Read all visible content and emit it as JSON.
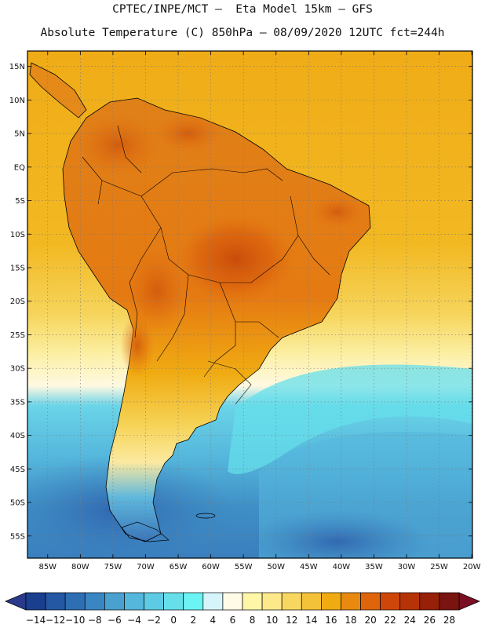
{
  "header": {
    "line1": "CPTEC/INPE/MCT –  Eta Model 15km – GFS",
    "line2": "Absolute Temperature (C) 850hPa – 08/09/2020 12UTC fct=244h"
  },
  "map": {
    "lat_labels": [
      "15N",
      "10N",
      "5N",
      "EQ",
      "5S",
      "10S",
      "15S",
      "20S",
      "25S",
      "30S",
      "35S",
      "40S",
      "45S",
      "50S",
      "55S"
    ],
    "lon_labels": [
      "85W",
      "80W",
      "75W",
      "70W",
      "65W",
      "60W",
      "55W",
      "50W",
      "45W",
      "40W",
      "35W",
      "30W",
      "25W",
      "20W"
    ],
    "lat_values": [
      15,
      10,
      5,
      0,
      -5,
      -10,
      -15,
      -20,
      -25,
      -30,
      -35,
      -40,
      -45,
      -50,
      -55
    ],
    "lon_values": [
      -85,
      -80,
      -75,
      -70,
      -65,
      -60,
      -55,
      -50,
      -45,
      -40,
      -35,
      -30,
      -25,
      -20
    ]
  },
  "colorbar": {
    "labels": [
      "-14",
      "-12",
      "-10",
      "-8",
      "-6",
      "-4",
      "-2",
      "0",
      "2",
      "4",
      "6",
      "8",
      "10",
      "12",
      "14",
      "16",
      "18",
      "20",
      "22",
      "24",
      "26",
      "28"
    ],
    "colors": [
      "#1b3f8f",
      "#2458a3",
      "#2e6fb4",
      "#3a86c2",
      "#4aa0cf",
      "#55b7dc",
      "#5ecbe4",
      "#66dfeb",
      "#6cf3f3",
      "#d6f5fb",
      "#fffbe6",
      "#fff6a8",
      "#fde98a",
      "#f8d760",
      "#f4c238",
      "#f0ab12",
      "#e88a10",
      "#df640c",
      "#cf460a",
      "#b63308",
      "#962008",
      "#7a1410"
    ],
    "under_color": "#2a3a8a",
    "over_color": "#7a0e22"
  }
}
